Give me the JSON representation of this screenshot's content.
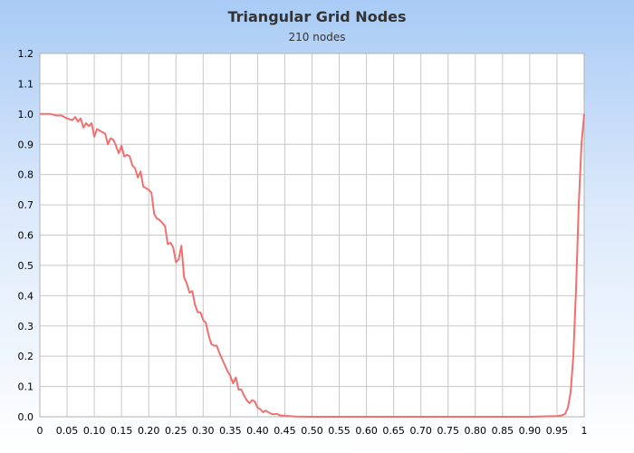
{
  "chart_data": {
    "type": "line",
    "title": "Triangular Grid Nodes",
    "subtitle": "210 nodes",
    "xlabel": "",
    "ylabel": "",
    "xlim": [
      0,
      1
    ],
    "ylim": [
      0,
      1.2
    ],
    "grid": true,
    "x_ticks": [
      "0",
      "0.05",
      "0.10",
      "0.15",
      "0.20",
      "0.25",
      "0.30",
      "0.35",
      "0.40",
      "0.45",
      "0.50",
      "0.55",
      "0.60",
      "0.65",
      "0.70",
      "0.75",
      "0.80",
      "0.85",
      "0.90",
      "0.95",
      "1"
    ],
    "y_ticks": [
      "0.0",
      "0.1",
      "0.2",
      "0.3",
      "0.4",
      "0.5",
      "0.6",
      "0.7",
      "0.8",
      "0.9",
      "1.0",
      "1.1",
      "1.2"
    ],
    "series": [
      {
        "color": "#f07070",
        "points": [
          [
            0,
            1.0
          ],
          [
            0.02,
            1.0
          ],
          [
            0.03,
            0.995
          ],
          [
            0.04,
            0.995
          ],
          [
            0.05,
            0.985
          ],
          [
            0.06,
            0.98
          ],
          [
            0.065,
            0.99
          ],
          [
            0.07,
            0.975
          ],
          [
            0.075,
            0.985
          ],
          [
            0.08,
            0.955
          ],
          [
            0.085,
            0.97
          ],
          [
            0.09,
            0.96
          ],
          [
            0.095,
            0.97
          ],
          [
            0.1,
            0.925
          ],
          [
            0.105,
            0.95
          ],
          [
            0.11,
            0.945
          ],
          [
            0.115,
            0.94
          ],
          [
            0.12,
            0.935
          ],
          [
            0.125,
            0.9
          ],
          [
            0.13,
            0.92
          ],
          [
            0.135,
            0.915
          ],
          [
            0.14,
            0.895
          ],
          [
            0.145,
            0.87
          ],
          [
            0.15,
            0.895
          ],
          [
            0.155,
            0.86
          ],
          [
            0.16,
            0.865
          ],
          [
            0.165,
            0.86
          ],
          [
            0.17,
            0.83
          ],
          [
            0.175,
            0.82
          ],
          [
            0.18,
            0.79
          ],
          [
            0.185,
            0.81
          ],
          [
            0.19,
            0.76
          ],
          [
            0.195,
            0.755
          ],
          [
            0.2,
            0.75
          ],
          [
            0.205,
            0.74
          ],
          [
            0.21,
            0.67
          ],
          [
            0.215,
            0.655
          ],
          [
            0.22,
            0.65
          ],
          [
            0.225,
            0.64
          ],
          [
            0.23,
            0.63
          ],
          [
            0.235,
            0.57
          ],
          [
            0.24,
            0.575
          ],
          [
            0.245,
            0.56
          ],
          [
            0.25,
            0.51
          ],
          [
            0.255,
            0.52
          ],
          [
            0.26,
            0.565
          ],
          [
            0.265,
            0.46
          ],
          [
            0.27,
            0.44
          ],
          [
            0.275,
            0.41
          ],
          [
            0.28,
            0.415
          ],
          [
            0.285,
            0.37
          ],
          [
            0.29,
            0.345
          ],
          [
            0.295,
            0.345
          ],
          [
            0.3,
            0.32
          ],
          [
            0.305,
            0.31
          ],
          [
            0.31,
            0.27
          ],
          [
            0.315,
            0.24
          ],
          [
            0.32,
            0.235
          ],
          [
            0.325,
            0.235
          ],
          [
            0.33,
            0.21
          ],
          [
            0.335,
            0.19
          ],
          [
            0.34,
            0.17
          ],
          [
            0.345,
            0.15
          ],
          [
            0.35,
            0.135
          ],
          [
            0.355,
            0.11
          ],
          [
            0.36,
            0.13
          ],
          [
            0.365,
            0.09
          ],
          [
            0.37,
            0.09
          ],
          [
            0.375,
            0.07
          ],
          [
            0.38,
            0.055
          ],
          [
            0.385,
            0.045
          ],
          [
            0.39,
            0.055
          ],
          [
            0.395,
            0.05
          ],
          [
            0.4,
            0.03
          ],
          [
            0.405,
            0.025
          ],
          [
            0.41,
            0.015
          ],
          [
            0.415,
            0.02
          ],
          [
            0.42,
            0.015
          ],
          [
            0.425,
            0.01
          ],
          [
            0.43,
            0.008
          ],
          [
            0.435,
            0.01
          ],
          [
            0.44,
            0.005
          ],
          [
            0.45,
            0.003
          ],
          [
            0.47,
            0.001
          ],
          [
            0.5,
            0
          ],
          [
            0.6,
            0
          ],
          [
            0.7,
            0
          ],
          [
            0.8,
            0
          ],
          [
            0.9,
            0
          ],
          [
            0.95,
            0.002
          ],
          [
            0.96,
            0.005
          ],
          [
            0.965,
            0.01
          ],
          [
            0.97,
            0.03
          ],
          [
            0.975,
            0.08
          ],
          [
            0.98,
            0.2
          ],
          [
            0.985,
            0.42
          ],
          [
            0.99,
            0.7
          ],
          [
            0.995,
            0.9
          ],
          [
            1.0,
            1.0
          ]
        ]
      }
    ]
  }
}
